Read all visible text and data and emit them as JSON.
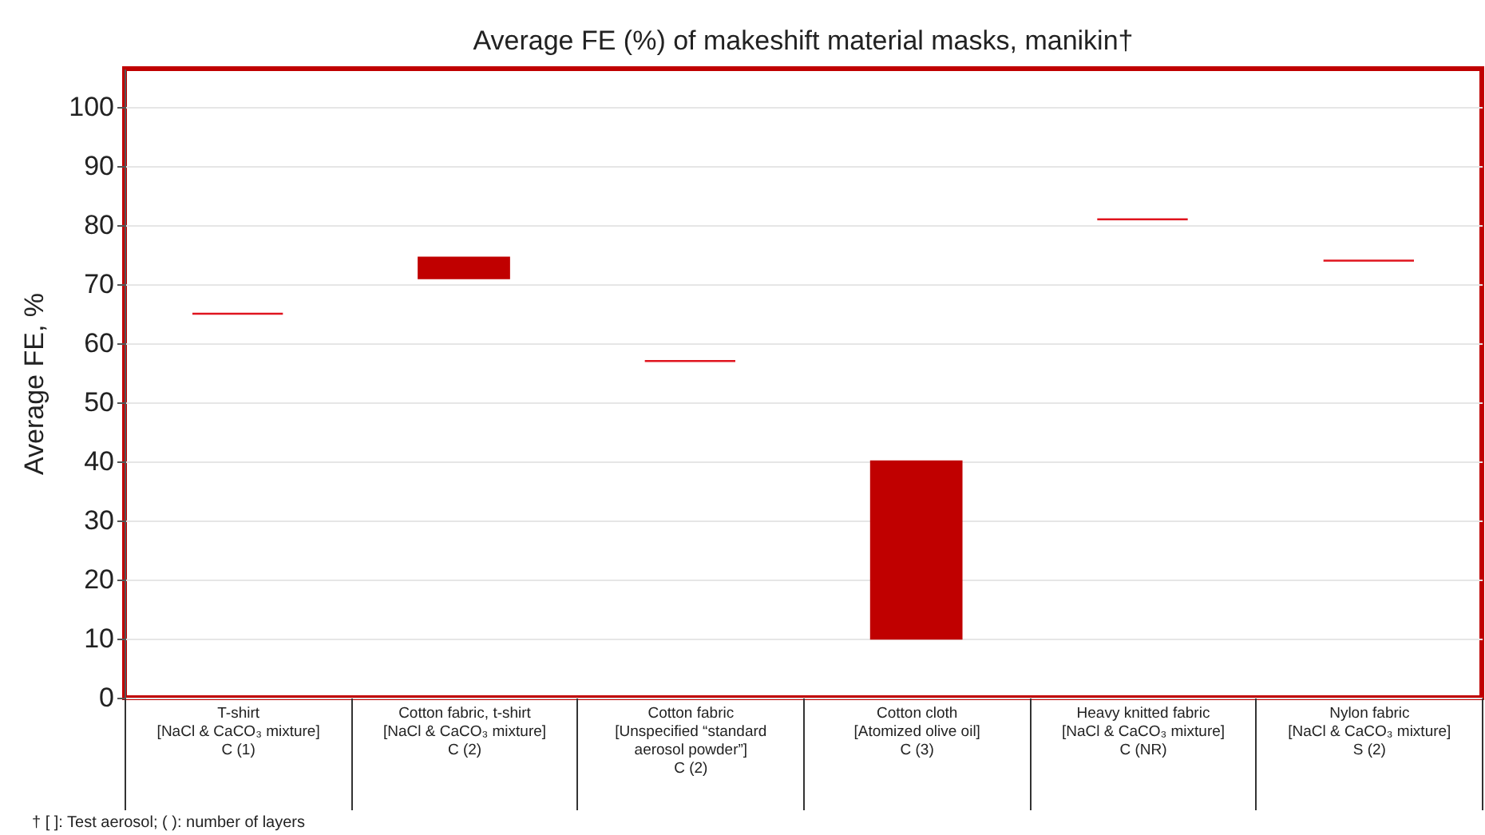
{
  "chart_data": {
    "type": "bar",
    "title": "Average FE (%) of makeshift material masks, manikin†",
    "ylabel": "Average FE, %",
    "categories": [
      "T-shirt\n[NaCl & CaCO₃ mixture]\n\nC (1)",
      "Cotton fabric, t-shirt\n[NaCl & CaCO₃ mixture]\n\nC (2)",
      "Cotton fabric\n[Unspecified “standard\naerosol powder”]\n\nC (2)",
      "Cotton cloth\n[Atomized olive oil]\n\nC (3)",
      "Heavy knitted fabric\n[NaCl & CaCO₃ mixture]\n\nC (NR)",
      "Nylon fabric\n[NaCl & CaCO₃ mixture]\n\nS (2)"
    ],
    "base": [
      65,
      71,
      57,
      10,
      81,
      74
    ],
    "values": [
      0,
      3.5,
      0,
      30,
      0,
      0
    ],
    "colors": [
      "#e0141e",
      "#c00000",
      "#e0141e",
      "#c00000",
      "#e0141e",
      "#e0141e"
    ],
    "ylim": [
      0,
      106.5
    ],
    "yticks": [
      0,
      10,
      20,
      30,
      40,
      50,
      60,
      70,
      80,
      90,
      100
    ],
    "grid": "y",
    "annotations": [
      "† [ ]: Test aerosol; ( ): number of layers"
    ]
  }
}
